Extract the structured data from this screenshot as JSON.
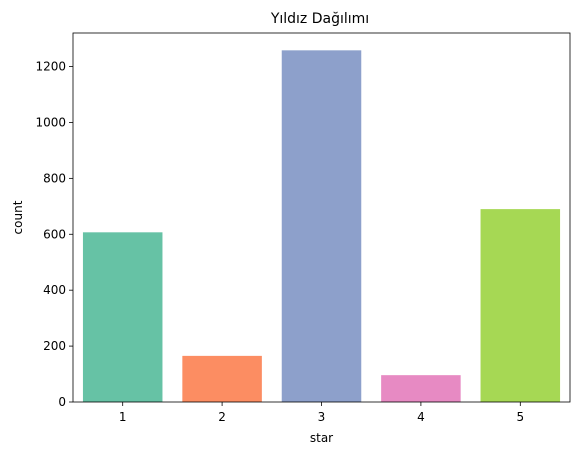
{
  "chart_data": {
    "type": "bar",
    "title": "Yıldız Dağılımı",
    "xlabel": "star",
    "ylabel": "count",
    "categories": [
      "1",
      "2",
      "3",
      "4",
      "5"
    ],
    "values": [
      607,
      165,
      1258,
      96,
      690
    ],
    "colors": [
      "#66c2a5",
      "#fc8d62",
      "#8da0cb",
      "#e78ac3",
      "#a6d854"
    ],
    "yticks": [
      "0",
      "200",
      "400",
      "600",
      "800",
      "1000",
      "1200"
    ],
    "ylim": [
      0,
      1320
    ],
    "grid": false,
    "legend": "none"
  }
}
